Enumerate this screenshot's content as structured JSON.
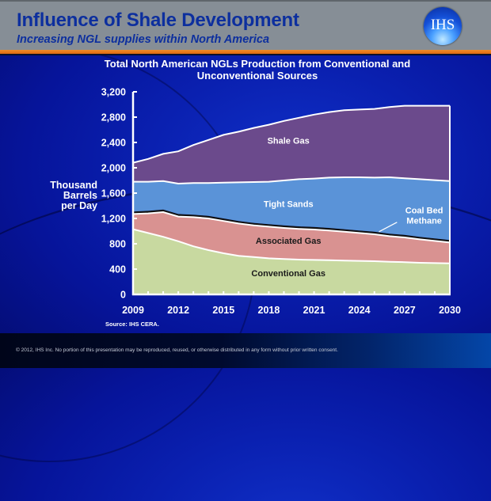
{
  "header": {
    "title": "Influence of Shale Development",
    "subtitle": "Increasing NGL supplies within North America",
    "logo_text": "IHS",
    "logo_icon": "ihs-globe-logo"
  },
  "colors": {
    "header_bg": "#868e96",
    "title": "#0d2f9e",
    "accent_bar": "#f08c2a",
    "shale_gas": "#6b4a8c",
    "tight_sands": "#5a93d8",
    "coal_bed_methane": "#111111",
    "associated_gas": "#d99291",
    "conventional_gas": "#c8d9a0"
  },
  "chart_data": {
    "type": "area",
    "stacked": true,
    "title": "Total North American NGLs Production from Conventional and Unconventional Sources",
    "xlabel": "",
    "ylabel": "Thousand Barrels per Day",
    "ylabel_lines": [
      "Thousand",
      "Barrels",
      "per Day"
    ],
    "ylim": [
      0,
      3200
    ],
    "yticks": [
      0,
      400,
      800,
      1200,
      1600,
      2000,
      2400,
      2800,
      3200
    ],
    "ytick_labels": [
      "0",
      "400",
      "800",
      "1,200",
      "1,600",
      "2,000",
      "2,400",
      "2,800",
      "3,200"
    ],
    "xlim": [
      2009,
      2030
    ],
    "xtick_labels": [
      "2009",
      "2012",
      "2015",
      "2018",
      "2021",
      "2024",
      "2027",
      "2030"
    ],
    "grid": false,
    "legend": "inline-labels",
    "x": [
      2009,
      2010,
      2011,
      2012,
      2013,
      2014,
      2015,
      2016,
      2017,
      2018,
      2019,
      2020,
      2021,
      2022,
      2023,
      2024,
      2025,
      2026,
      2027,
      2028,
      2029,
      2030
    ],
    "series": [
      {
        "name": "Conventional Gas",
        "color": "#c8d9a0",
        "label_color": "#1a1a1a",
        "values": [
          1030,
          970,
          910,
          840,
          760,
          700,
          650,
          610,
          590,
          570,
          560,
          550,
          545,
          540,
          535,
          530,
          525,
          515,
          510,
          500,
          495,
          490
        ]
      },
      {
        "name": "Associated Gas",
        "color": "#d99291",
        "label_color": "#1a1a1a",
        "values": [
          240,
          310,
          390,
          390,
          460,
          500,
          510,
          510,
          500,
          500,
          490,
          485,
          480,
          470,
          455,
          440,
          425,
          405,
          390,
          370,
          350,
          330
        ]
      },
      {
        "name": "Coal Bed Methane",
        "color": "#111111",
        "label_color": "#ffffff",
        "values": [
          40,
          40,
          40,
          40,
          40,
          40,
          40,
          40,
          40,
          40,
          40,
          40,
          40,
          40,
          40,
          40,
          40,
          40,
          40,
          40,
          40,
          40
        ]
      },
      {
        "name": "Tight Sands",
        "color": "#5a93d8",
        "label_color": "#ffffff",
        "values": [
          470,
          460,
          450,
          480,
          500,
          520,
          565,
          610,
          645,
          670,
          710,
          745,
          765,
          795,
          820,
          840,
          855,
          890,
          895,
          910,
          920,
          930
        ]
      },
      {
        "name": "Shale Gas",
        "color": "#6b4a8c",
        "label_color": "#ffffff",
        "values": [
          300,
          360,
          430,
          510,
          600,
          680,
          755,
          800,
          855,
          900,
          940,
          970,
          1010,
          1035,
          1060,
          1070,
          1085,
          1110,
          1145,
          1160,
          1175,
          1190
        ]
      }
    ],
    "source": "Source: IHS CERA."
  },
  "footer": {
    "copyright": "© 2012, IHS Inc. No portion of this presentation may be reproduced, reused, or otherwise distributed in any form without prior written consent."
  }
}
